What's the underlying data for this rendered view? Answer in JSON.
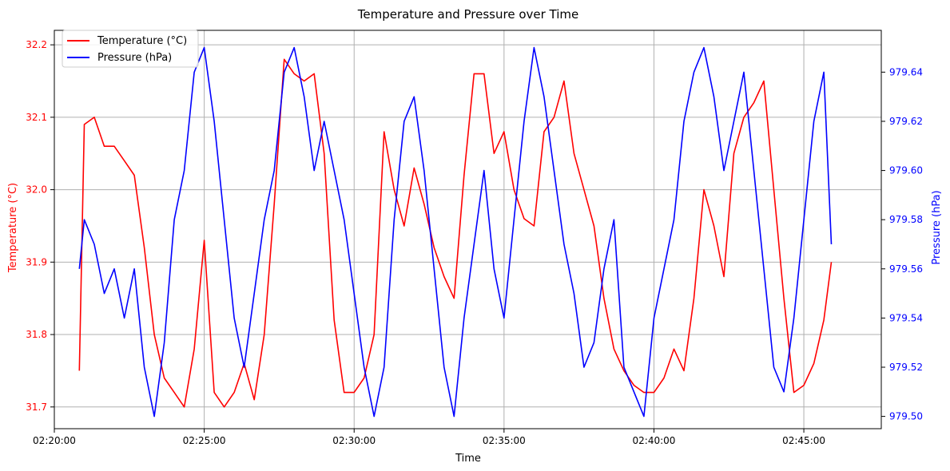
{
  "chart_data": {
    "type": "line",
    "title": "Temperature and Pressure over Time",
    "xlabel": "Time",
    "ylabel_left": "Temperature (°C)",
    "ylabel_right": "Pressure (hPa)",
    "grid": true,
    "legend_position": "top-left",
    "x_range": [
      "02:20:00",
      "02:47:35"
    ],
    "x_ticks": [
      "02:20:00",
      "02:25:00",
      "02:30:00",
      "02:35:00",
      "02:40:00",
      "02:45:00"
    ],
    "y_left": {
      "range": [
        31.67,
        32.22
      ],
      "ticks": [
        "31.7",
        "31.8",
        "31.9",
        "32.0",
        "32.1",
        "32.2"
      ]
    },
    "y_right": {
      "range": [
        979.495,
        979.657
      ],
      "ticks": [
        "979.50",
        "979.52",
        "979.54",
        "979.56",
        "979.58",
        "979.60",
        "979.62",
        "979.64"
      ]
    },
    "series": [
      {
        "name": "Temperature (°C)",
        "axis": "left",
        "color": "#ff0000",
        "x": [
          "02:20:50",
          "02:21:00",
          "02:21:20",
          "02:21:40",
          "02:22:00",
          "02:22:20",
          "02:22:40",
          "02:23:00",
          "02:23:20",
          "02:23:40",
          "02:24:00",
          "02:24:20",
          "02:24:40",
          "02:25:00",
          "02:25:20",
          "02:25:40",
          "02:26:00",
          "02:26:20",
          "02:26:40",
          "02:27:00",
          "02:27:20",
          "02:27:40",
          "02:28:00",
          "02:28:20",
          "02:28:40",
          "02:29:00",
          "02:29:20",
          "02:29:40",
          "02:30:00",
          "02:30:20",
          "02:30:40",
          "02:31:00",
          "02:31:20",
          "02:31:40",
          "02:32:00",
          "02:32:20",
          "02:32:40",
          "02:33:00",
          "02:33:20",
          "02:33:40",
          "02:34:00",
          "02:34:20",
          "02:34:40",
          "02:35:00",
          "02:35:20",
          "02:35:40",
          "02:36:00",
          "02:36:20",
          "02:36:40",
          "02:37:00",
          "02:37:20",
          "02:37:40",
          "02:38:00",
          "02:38:20",
          "02:38:40",
          "02:39:00",
          "02:39:20",
          "02:39:40",
          "02:40:00",
          "02:40:20",
          "02:40:40",
          "02:41:00",
          "02:41:20",
          "02:41:40",
          "02:42:00",
          "02:42:20",
          "02:42:40",
          "02:43:00",
          "02:43:20",
          "02:43:40",
          "02:44:00",
          "02:44:20",
          "02:44:40",
          "02:45:00",
          "02:45:20",
          "02:45:40",
          "02:45:55"
        ],
        "values": [
          31.75,
          32.09,
          32.1,
          32.06,
          32.06,
          32.04,
          32.02,
          31.92,
          31.8,
          31.74,
          31.72,
          31.7,
          31.78,
          31.93,
          31.72,
          31.7,
          31.72,
          31.76,
          31.71,
          31.8,
          31.98,
          32.18,
          32.16,
          32.15,
          32.16,
          32.05,
          31.82,
          31.72,
          31.72,
          31.74,
          31.8,
          32.08,
          32.0,
          31.95,
          32.03,
          31.98,
          31.92,
          31.88,
          31.85,
          32.02,
          32.16,
          32.16,
          32.05,
          32.08,
          32.0,
          31.96,
          31.95,
          32.08,
          32.1,
          32.15,
          32.05,
          32.0,
          31.95,
          31.85,
          31.78,
          31.75,
          31.73,
          31.72,
          31.72,
          31.74,
          31.78,
          31.75,
          31.85,
          32.0,
          31.95,
          31.88,
          32.05,
          32.1,
          32.12,
          32.15,
          32.0,
          31.85,
          31.72,
          31.73,
          31.76,
          31.82,
          31.9
        ]
      },
      {
        "name": "Pressure (hPa)",
        "axis": "right",
        "color": "#0000ff",
        "x": [
          "02:20:50",
          "02:21:00",
          "02:21:20",
          "02:21:40",
          "02:22:00",
          "02:22:20",
          "02:22:40",
          "02:23:00",
          "02:23:20",
          "02:23:40",
          "02:24:00",
          "02:24:20",
          "02:24:40",
          "02:25:00",
          "02:25:20",
          "02:25:40",
          "02:26:00",
          "02:26:20",
          "02:26:40",
          "02:27:00",
          "02:27:20",
          "02:27:40",
          "02:28:00",
          "02:28:20",
          "02:28:40",
          "02:29:00",
          "02:29:20",
          "02:29:40",
          "02:30:00",
          "02:30:20",
          "02:30:40",
          "02:31:00",
          "02:31:20",
          "02:31:40",
          "02:32:00",
          "02:32:20",
          "02:32:40",
          "02:33:00",
          "02:33:20",
          "02:33:40",
          "02:34:00",
          "02:34:20",
          "02:34:40",
          "02:35:00",
          "02:35:20",
          "02:35:40",
          "02:36:00",
          "02:36:20",
          "02:36:40",
          "02:37:00",
          "02:37:20",
          "02:37:40",
          "02:38:00",
          "02:38:20",
          "02:38:40",
          "02:39:00",
          "02:39:20",
          "02:39:40",
          "02:40:00",
          "02:40:20",
          "02:40:40",
          "02:41:00",
          "02:41:20",
          "02:41:40",
          "02:42:00",
          "02:42:20",
          "02:42:40",
          "02:43:00",
          "02:43:20",
          "02:43:40",
          "02:44:00",
          "02:44:20",
          "02:44:40",
          "02:45:00",
          "02:45:20",
          "02:45:40",
          "02:45:55"
        ],
        "values": [
          979.56,
          979.58,
          979.57,
          979.55,
          979.56,
          979.54,
          979.56,
          979.52,
          979.5,
          979.53,
          979.58,
          979.6,
          979.64,
          979.65,
          979.62,
          979.58,
          979.54,
          979.52,
          979.55,
          979.58,
          979.6,
          979.64,
          979.65,
          979.63,
          979.6,
          979.62,
          979.6,
          979.58,
          979.55,
          979.52,
          979.5,
          979.52,
          979.58,
          979.62,
          979.63,
          979.6,
          979.56,
          979.52,
          979.5,
          979.54,
          979.57,
          979.6,
          979.56,
          979.54,
          979.58,
          979.62,
          979.65,
          979.63,
          979.6,
          979.57,
          979.55,
          979.52,
          979.53,
          979.56,
          979.58,
          979.52,
          979.51,
          979.5,
          979.54,
          979.56,
          979.58,
          979.62,
          979.64,
          979.65,
          979.63,
          979.6,
          979.62,
          979.64,
          979.6,
          979.56,
          979.52,
          979.51,
          979.54,
          979.58,
          979.62,
          979.64,
          979.57
        ]
      }
    ]
  }
}
